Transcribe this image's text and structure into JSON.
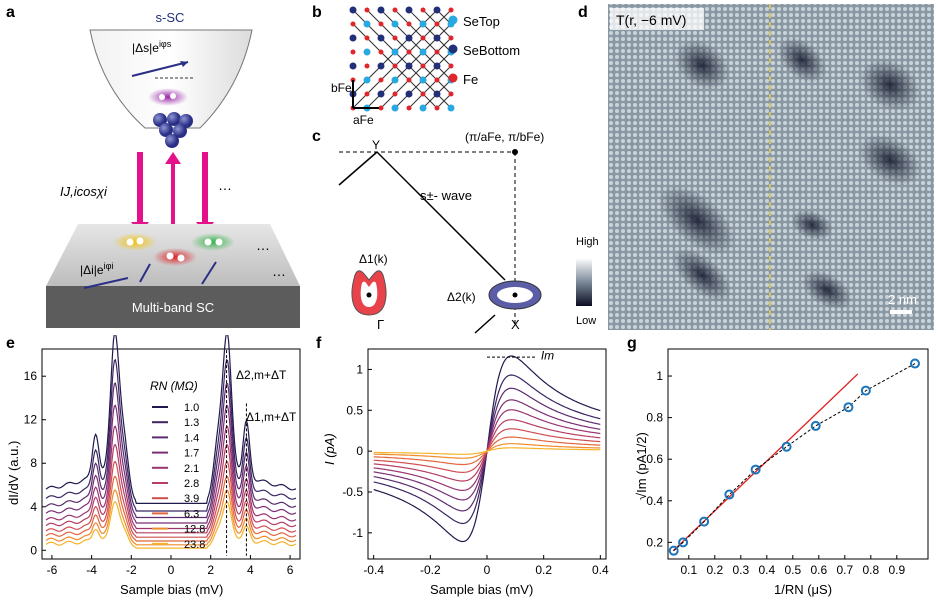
{
  "panels": {
    "a": {
      "label": "a",
      "tip_label": "s-SC",
      "tip_gap": "|Δs|e",
      "tip_gap_sup": "iφs",
      "current": "IJ,icosχi",
      "sample_gap": "|Δi|e",
      "sample_gap_sup": "iφi",
      "dots": "…",
      "substrate": "Multi-band SC"
    },
    "b": {
      "label": "b",
      "legend": [
        "SeTop",
        "SeBottom",
        "Fe"
      ],
      "legend_colors": [
        "#29a9e1",
        "#22307a",
        "#e0262b"
      ],
      "afe": "aFe",
      "bfe": "bFe"
    },
    "c": {
      "label": "c",
      "point_label": "(π/aFe, π/bFe)",
      "gamma_top": "Y",
      "wave": "s±- wave",
      "delta1": "Δ1(k)",
      "delta2": "Δ2(k)",
      "gamma": "Γ",
      "xpt": "X"
    },
    "d": {
      "label": "d",
      "title": "T(r, −6 mV)",
      "cbar_high": "High",
      "cbar_low": "Low",
      "scale": "2 nm"
    },
    "e": {
      "label": "e"
    },
    "f": {
      "label": "f"
    },
    "g": {
      "label": "g"
    }
  },
  "chart_data": [
    {
      "id": "e",
      "type": "line",
      "xlabel": "Sample bias (mV)",
      "ylabel": "dI/dV (a.u.)",
      "xlim": [
        -6.5,
        6.5
      ],
      "ylim": [
        -0.8,
        18.5
      ],
      "xticks": [
        -6,
        -4,
        -2,
        0,
        2,
        4,
        6
      ],
      "yticks": [
        0,
        4,
        8,
        12,
        16
      ],
      "legend_title": "RN (MΩ)",
      "annotations": [
        "Δ2,m+ΔT",
        "Δ1,m+ΔT"
      ],
      "series": [
        {
          "name": "1.0",
          "color": "#1f1a4d",
          "offset": 4.3,
          "amp": 12.2
        },
        {
          "name": "1.3",
          "color": "#3b2663",
          "offset": 3.6,
          "amp": 10.8
        },
        {
          "name": "1.4",
          "color": "#5a2b6e",
          "offset": 3.0,
          "amp": 9.6
        },
        {
          "name": "1.7",
          "color": "#7a2f74",
          "offset": 2.5,
          "amp": 8.4
        },
        {
          "name": "2.1",
          "color": "#99346f",
          "offset": 2.0,
          "amp": 7.3
        },
        {
          "name": "2.8",
          "color": "#b63d63",
          "offset": 1.6,
          "amp": 6.3
        },
        {
          "name": "3.9",
          "color": "#cf4e52",
          "offset": 1.2,
          "amp": 5.4
        },
        {
          "name": "6.3",
          "color": "#e2663f",
          "offset": 0.85,
          "amp": 4.6
        },
        {
          "name": "12.8",
          "color": "#ef8b2c",
          "offset": 0.5,
          "amp": 3.9
        },
        {
          "name": "23.8",
          "color": "#f5b32a",
          "offset": 0.2,
          "amp": 3.3
        }
      ]
    },
    {
      "id": "f",
      "type": "line",
      "xlabel": "Sample bias (mV)",
      "ylabel": "I (pA)",
      "xlim": [
        -0.42,
        0.42
      ],
      "ylim": [
        -1.32,
        1.25
      ],
      "xticks": [
        -0.4,
        -0.2,
        0,
        0.2,
        0.4
      ],
      "yticks": [
        -1,
        -0.5,
        0,
        0.5,
        1
      ],
      "annotation": "Im",
      "peak_amplitudes_pA": [
        1.15,
        0.92,
        0.76,
        0.62,
        0.5,
        0.38,
        0.27,
        0.17,
        0.09,
        0.04
      ]
    },
    {
      "id": "g",
      "type": "scatter",
      "xlabel": "1/RN (μS)",
      "ylabel": "√Im (pA1/2)",
      "xlim": [
        0.02,
        1.02
      ],
      "ylim": [
        0.12,
        1.13
      ],
      "xticks": [
        0.1,
        0.2,
        0.3,
        0.4,
        0.5,
        0.6,
        0.7,
        0.8,
        0.9
      ],
      "yticks": [
        0.2,
        0.4,
        0.6,
        0.8,
        1
      ],
      "x": [
        0.042,
        0.078,
        0.159,
        0.256,
        0.357,
        0.476,
        0.588,
        0.714,
        0.781,
        0.97
      ],
      "y": [
        0.16,
        0.2,
        0.3,
        0.43,
        0.55,
        0.66,
        0.76,
        0.85,
        0.93,
        1.06
      ],
      "linear_fit": {
        "x": [
          0.04,
          0.75
        ],
        "y": [
          0.16,
          1.01
        ],
        "color": "#e02020"
      }
    }
  ]
}
